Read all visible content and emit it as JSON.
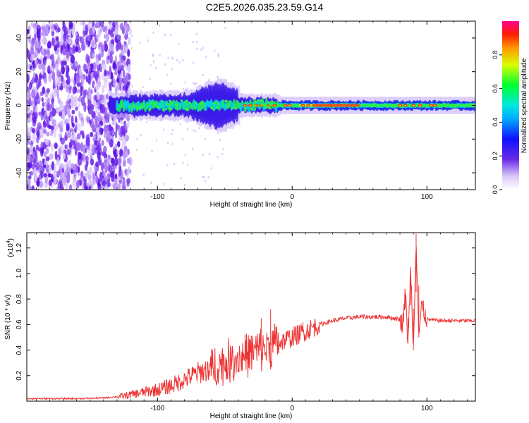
{
  "title": "C2E5.2026.035.23.59.G14",
  "colors": {
    "line": "#ee3333",
    "purple": "#7a33ee",
    "axis": "#000000"
  },
  "chart_data": [
    {
      "type": "heatmap",
      "title": "C2E5.2026.035.23.59.G14",
      "xlabel": "Height of straight line (km)",
      "ylabel": "Frequency (Hz)",
      "xlim": [
        -197,
        136
      ],
      "ylim": [
        -50,
        50
      ],
      "xticks": [
        -100,
        0,
        100
      ],
      "xtick_labels": [
        "-100",
        "0",
        "100"
      ],
      "yticks": [
        -40,
        -20,
        0,
        20,
        40
      ],
      "ytick_labels": [
        "-40",
        "-20",
        "0",
        "20",
        "40"
      ],
      "signal_band": {
        "start_km": -135,
        "center_freq_hz": 0,
        "noise_region_km": [
          -197,
          -120
        ],
        "peak_spread_near_km": -50
      },
      "colorbar": {
        "label": "Normalized spectral amplitude",
        "range": [
          0.0,
          1.0
        ],
        "ticks": [
          0.0,
          0.2,
          0.4,
          0.6,
          0.8
        ],
        "tick_labels": [
          "0.0",
          "0.2",
          "0.4",
          "0.6",
          "0.8"
        ],
        "colormap": "rainbow (white-purple-blue-cyan-green-yellow-red-magenta)"
      }
    },
    {
      "type": "line",
      "xlabel": "Height of straight line (km)",
      "ylabel": "SNR (10 * v/v)",
      "exponent_label": "(x10",
      "exponent": "4",
      "exponent_close": ")",
      "xlim": [
        -197,
        136
      ],
      "ylim": [
        0,
        1.32
      ],
      "xticks": [
        -100,
        0,
        100
      ],
      "xtick_labels": [
        "-100",
        "0",
        "100"
      ],
      "yticks": [
        0.2,
        0.4,
        0.6,
        0.8,
        1.0,
        1.2
      ],
      "ytick_labels": [
        "0.2",
        "0.4",
        "0.6",
        "0.8",
        "1.0",
        "1.2"
      ],
      "series": [
        {
          "name": "SNR",
          "x": [
            -197,
            -180,
            -160,
            -140,
            -125,
            -110,
            -100,
            -90,
            -80,
            -70,
            -60,
            -50,
            -40,
            -30,
            -20,
            -10,
            0,
            10,
            20,
            30,
            40,
            50,
            60,
            70,
            75,
            80,
            82,
            84,
            86,
            88,
            90,
            92,
            94,
            96,
            100,
            110,
            120,
            136
          ],
          "values": [
            0.02,
            0.02,
            0.02,
            0.025,
            0.04,
            0.07,
            0.09,
            0.12,
            0.17,
            0.22,
            0.26,
            0.3,
            0.34,
            0.38,
            0.42,
            0.46,
            0.5,
            0.55,
            0.6,
            0.63,
            0.65,
            0.66,
            0.66,
            0.66,
            0.65,
            0.64,
            0.6,
            0.85,
            0.45,
            1.05,
            0.4,
            1.31,
            0.5,
            0.75,
            0.64,
            0.63,
            0.63,
            0.63
          ]
        }
      ]
    }
  ]
}
